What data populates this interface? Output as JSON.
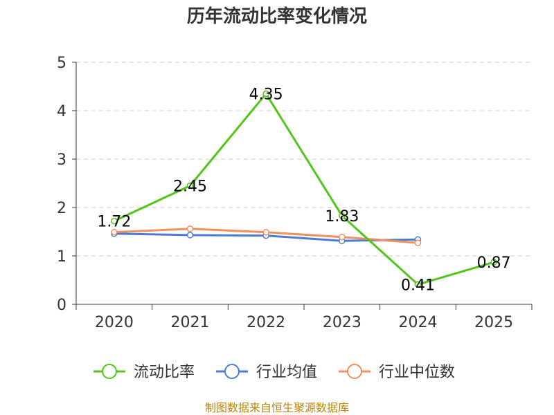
{
  "chart_data": {
    "type": "line",
    "title": "历年流动比率变化情况",
    "categories": [
      "2020",
      "2021",
      "2022",
      "2023",
      "2024",
      "2025"
    ],
    "ylim": [
      0,
      5
    ],
    "yticks": [
      0,
      1,
      2,
      3,
      4,
      5
    ],
    "grid": true,
    "legend_position": "bottom",
    "series": [
      {
        "name": "流动比率",
        "color": "#52c41a",
        "values": [
          1.72,
          2.45,
          4.35,
          1.83,
          0.41,
          0.87
        ],
        "labels": [
          "1.72",
          "2.45",
          "4.35",
          "1.83",
          "0.41",
          "0.87"
        ]
      },
      {
        "name": "行业均值",
        "color": "#4a7bd6",
        "values": [
          1.46,
          1.43,
          1.42,
          1.31,
          1.34,
          null
        ]
      },
      {
        "name": "行业中位数",
        "color": "#f28e5c",
        "values": [
          1.49,
          1.56,
          1.49,
          1.39,
          1.27,
          null
        ]
      }
    ],
    "source": "制图数据来自恒生聚源数据库"
  }
}
